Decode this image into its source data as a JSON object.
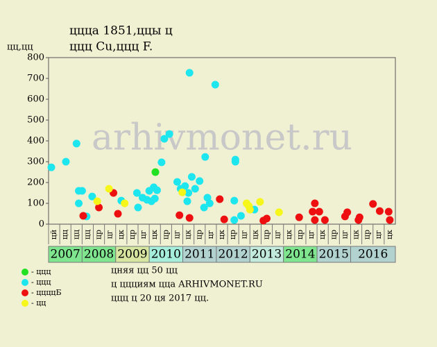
{
  "chart_data": {
    "type": "scatter",
    "title": "ццца 1851,ццы ц",
    "subtitle": "ццц Cu,ццц F.",
    "y_label": "цц,цц",
    "watermark": "arhivmonet.ru",
    "ylim": [
      0,
      800
    ],
    "yticks": [
      0,
      100,
      200,
      300,
      400,
      500,
      600,
      700,
      800
    ],
    "xlim": [
      0,
      31
    ],
    "column_labels": [
      "цй",
      "цц",
      "цц",
      "цц",
      "цр",
      "цг",
      "цк",
      "цр",
      "цг",
      "цк",
      "цр",
      "цг",
      "цк",
      "цр",
      "цг",
      "цк",
      "цр",
      "цг",
      "цк",
      "цр",
      "цг",
      "цк",
      "цр",
      "цг",
      "цк",
      "цр",
      "цг",
      "цк",
      "цр",
      "цг",
      "цк"
    ],
    "years": [
      "2007",
      "2008",
      "2009",
      "2010",
      "2011",
      "2012",
      "2013",
      "2014",
      "2015",
      "2016"
    ],
    "year_colors": [
      "#7fe68f",
      "#7fe68f",
      "#d6e6a0",
      "#a6eedc",
      "#b2d2d0",
      "#b2d2d0",
      "#c2eadc",
      "#7fe68f",
      "#b2d2d0",
      "#b2d2d0"
    ],
    "series": [
      {
        "name": "- ццц",
        "color": "#22e022",
        "x": [
          9.55
        ],
        "values": [
          250
        ]
      },
      {
        "name": "- ццц",
        "color": "#1ee6ee",
        "x": [
          0.25,
          1.55,
          2.5,
          2.7,
          2.7,
          3,
          3.4,
          3.9,
          6.5,
          7.9,
          8,
          8.4,
          8.8,
          9,
          9.2,
          9.4,
          9.5,
          9.7,
          10.1,
          10.35,
          10.8,
          11.5,
          11.8,
          12.2,
          12.4,
          12.5,
          12.6,
          12.8,
          13.1,
          13.5,
          13.9,
          14,
          14.2,
          14.4,
          14.9,
          16.6,
          16.7,
          16.7,
          16.6,
          17.2,
          18.4
        ],
        "values": [
          273,
          300,
          387,
          100,
          160,
          160,
          37,
          133,
          113,
          150,
          80,
          127,
          117,
          160,
          110,
          177,
          123,
          163,
          297,
          410,
          433,
          203,
          170,
          183,
          110,
          150,
          727,
          227,
          170,
          207,
          80,
          323,
          127,
          100,
          670,
          113,
          310,
          300,
          20,
          40,
          70
        ]
      },
      {
        "name": "- ццццБ",
        "color": "#ee1010",
        "x": [
          3.1,
          4.5,
          5.8,
          6.2,
          11.7,
          12.6,
          15.3,
          15.7,
          19.2,
          19.5,
          22.4,
          23.6,
          23.8,
          24.2,
          23.8,
          24.7,
          26.5,
          26.7,
          27.7,
          27.8,
          29,
          29.6,
          30.4,
          30.5
        ],
        "values": [
          40,
          80,
          150,
          50,
          43,
          30,
          120,
          23,
          17,
          27,
          33,
          60,
          100,
          60,
          20,
          20,
          37,
          57,
          20,
          33,
          97,
          63,
          60,
          20
        ]
      },
      {
        "name": "- цц",
        "color": "#f6f61a",
        "x": [
          4.35,
          5.4,
          6.8,
          11.95,
          17.7,
          17.9,
          18,
          18.9,
          20.6
        ],
        "values": [
          110,
          170,
          100,
          153,
          100,
          87,
          70,
          107,
          57
        ]
      }
    ],
    "notes": [
      "цняя цц 50 цц",
      "ц ццциям ццa ARHIVMONET.RU",
      "ццц ц 20 ця 2017 цц."
    ]
  }
}
